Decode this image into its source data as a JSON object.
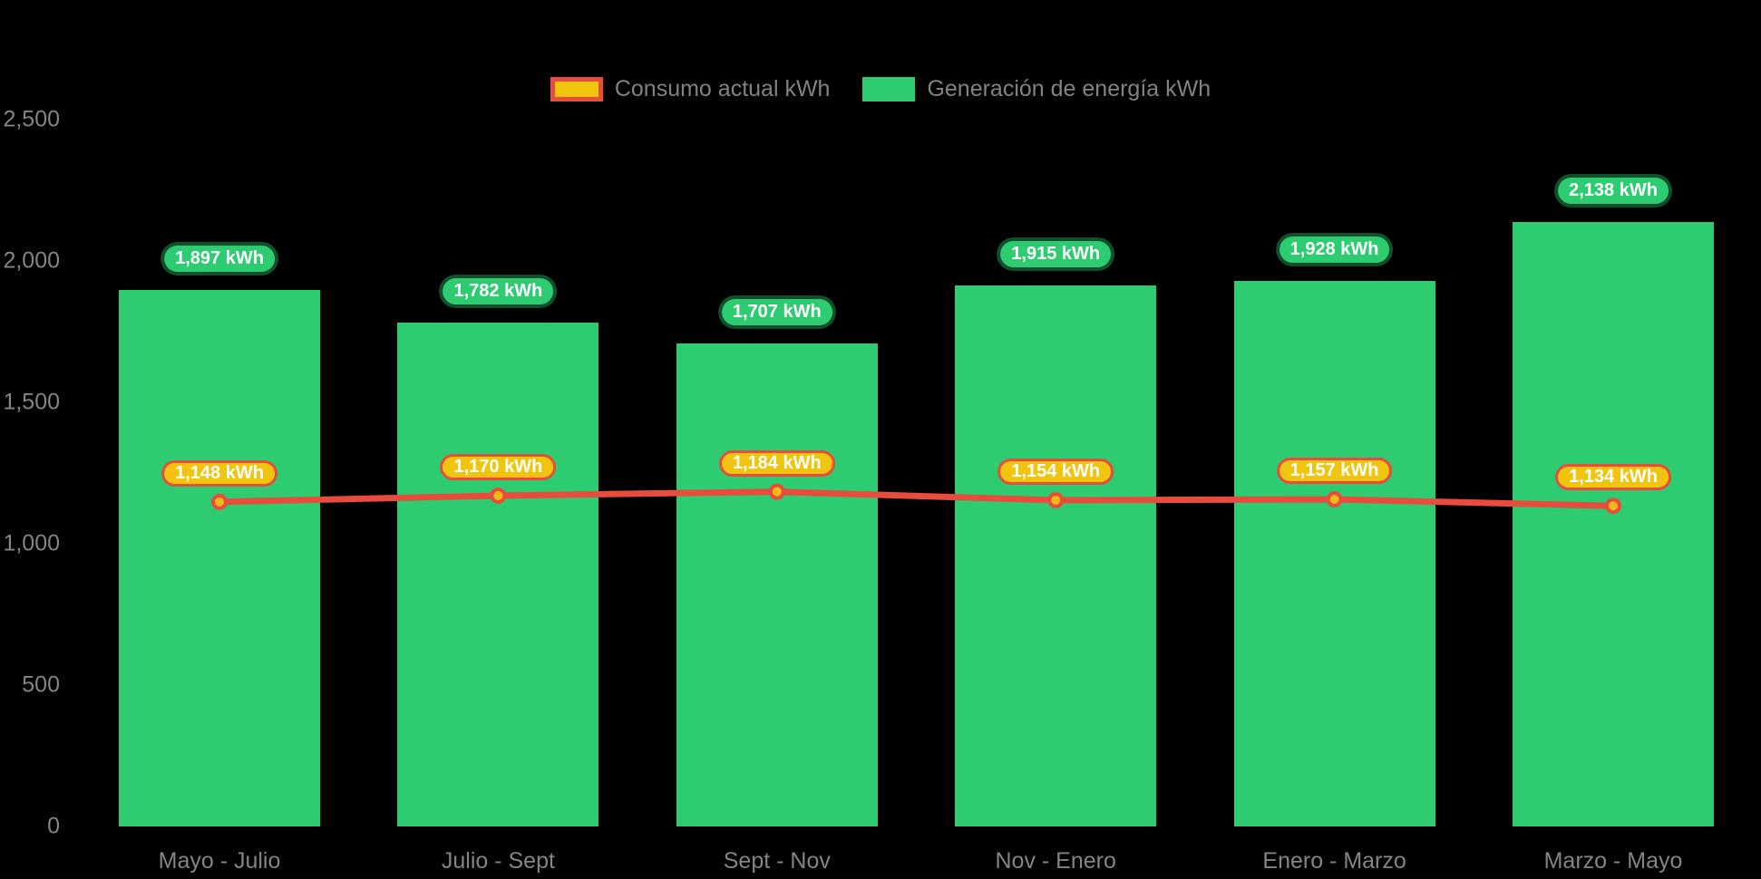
{
  "chart_data": {
    "type": "bar",
    "title": "",
    "categories": [
      "Mayo - Julio",
      "Julio - Sept",
      "Sept - Nov",
      "Nov - Enero",
      "Enero - Marzo",
      "Marzo - Mayo"
    ],
    "series": [
      {
        "name": "Consumo actual kWh",
        "kind": "line",
        "color": "#e74c3c",
        "marker_fill": "#f5b915",
        "swatch": {
          "fill": "#f0c40f",
          "border": "#e74c3c"
        },
        "values": [
          1148,
          1170,
          1184,
          1154,
          1157,
          1134
        ],
        "value_labels": [
          "1,148 kWh",
          "1,170 kWh",
          "1,184 kWh",
          "1,154 kWh",
          "1,157 kWh",
          "1,134 kWh"
        ]
      },
      {
        "name": "Generación de energía kWh",
        "kind": "bar",
        "color": "#2ecc71",
        "swatch": {
          "fill": "#2ecc71",
          "border": "#2ecc71"
        },
        "values": [
          1897,
          1782,
          1707,
          1915,
          1928,
          2138
        ],
        "value_labels": [
          "1,897 kWh",
          "1,782 kWh",
          "1,707 kWh",
          "1,915 kWh",
          "1,928 kWh",
          "2,138 kWh"
        ]
      }
    ],
    "xlabel": "",
    "ylabel": "",
    "ylim": [
      0,
      2500
    ],
    "yticks": [
      0,
      500,
      1000,
      1500,
      2000,
      2500
    ],
    "ytick_labels": [
      "0",
      "500",
      "1,000",
      "1,500",
      "2,000",
      "2,500"
    ],
    "grid": false,
    "legend_position": "top-center",
    "background_color": "#000000",
    "axis_text_color": "#848484",
    "unit": "kWh"
  }
}
